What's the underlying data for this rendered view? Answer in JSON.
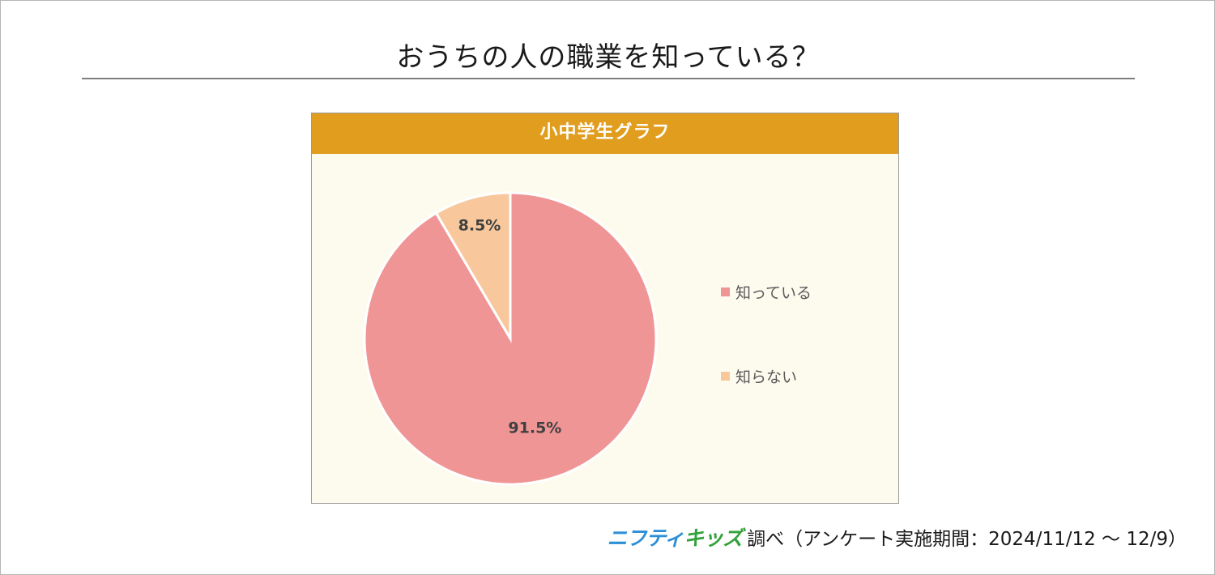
{
  "page": {
    "title": "おうちの人の職業を知っている？",
    "panel_title": "小中学生グラフ"
  },
  "chart_data": {
    "type": "pie",
    "title": "小中学生グラフ",
    "categories": [
      "知っている",
      "知らない"
    ],
    "values": [
      91.5,
      8.5
    ],
    "value_labels": [
      "91.5%",
      "8.5%"
    ],
    "colors": [
      "#f09595",
      "#f8c89c"
    ],
    "legend_position": "right"
  },
  "footer": {
    "brand_part1": "ニフティ",
    "brand_part2": "キッズ",
    "text": "調べ（アンケート実施期間：2024/11/12 ～ 12/9）"
  }
}
